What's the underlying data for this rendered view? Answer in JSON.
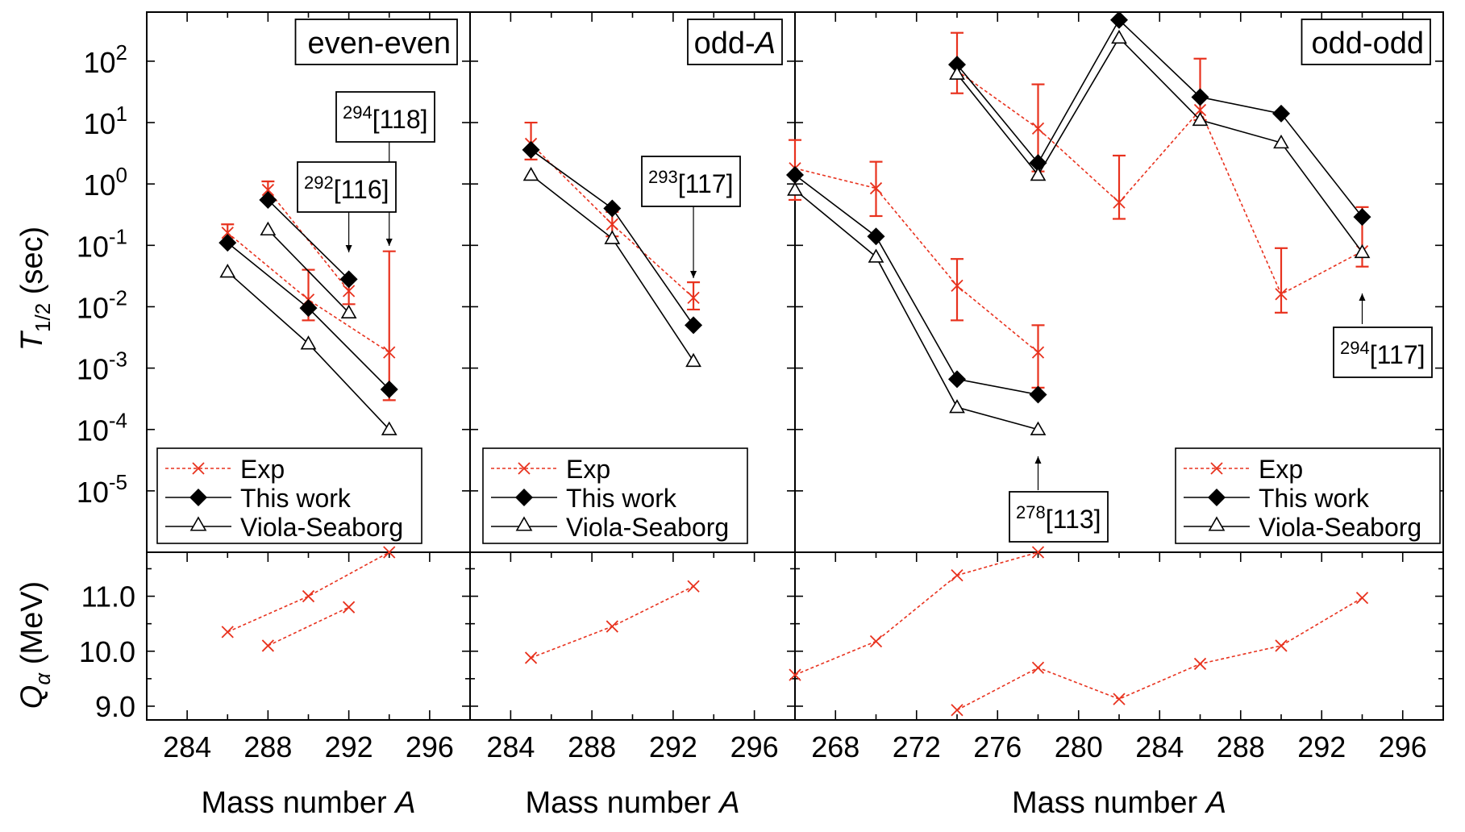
{
  "figure": {
    "y_top_label_main": "T",
    "y_top_label_sub": "1/2",
    "y_top_label_unit": " (sec)",
    "y_bottom_label_main": "Q",
    "y_bottom_label_sub": "α",
    "y_bottom_label_unit": " (MeV)"
  },
  "legend": {
    "entries": [
      "Exp",
      "This work",
      "Viola-Seaborg"
    ]
  },
  "colors": {
    "exp": "#e8321e",
    "model": "#000000"
  },
  "chart_data": [
    {
      "type": "line",
      "title": "even-even",
      "xlabel_main": "Mass number ",
      "xlabel_italic": "A",
      "x_ticks": [
        284,
        288,
        292,
        296
      ],
      "xlim": [
        282,
        298
      ],
      "y_scale": "log",
      "ylim_log10": [
        -6,
        2.8
      ],
      "y_tick_labels": [
        {
          "base": "10",
          "exp": "2",
          "log": 2
        },
        {
          "base": "10",
          "exp": "1",
          "log": 1
        },
        {
          "base": "10",
          "exp": "0",
          "log": 0
        },
        {
          "base": "10",
          "exp": "-1",
          "log": -1
        },
        {
          "base": "10",
          "exp": "-2",
          "log": -2
        },
        {
          "base": "10",
          "exp": "-3",
          "log": -3
        },
        {
          "base": "10",
          "exp": "-4",
          "log": -4
        },
        {
          "base": "10",
          "exp": "-5",
          "log": -5
        }
      ],
      "series": [
        {
          "name": "Exp",
          "segments": [
            [
              {
                "x": 286,
                "y": 0.16,
                "lo": 0.11,
                "hi": 0.22
              },
              {
                "x": 290,
                "y": 0.013,
                "lo": 0.006,
                "hi": 0.04
              },
              {
                "x": 294,
                "y": 0.0018,
                "lo": 0.0003,
                "hi": 0.08
              }
            ],
            [
              {
                "x": 288,
                "y": 0.8,
                "lo": 0.55,
                "hi": 1.1
              },
              {
                "x": 292,
                "y": 0.018,
                "lo": 0.011,
                "hi": 0.028
              }
            ]
          ]
        },
        {
          "name": "This work",
          "segments": [
            [
              {
                "x": 286,
                "y": 0.11
              },
              {
                "x": 290,
                "y": 0.0095
              },
              {
                "x": 294,
                "y": 0.00045
              }
            ],
            [
              {
                "x": 288,
                "y": 0.55
              },
              {
                "x": 292,
                "y": 0.028
              }
            ]
          ]
        },
        {
          "name": "Viola-Seaborg",
          "segments": [
            [
              {
                "x": 286,
                "y": 0.037
              },
              {
                "x": 290,
                "y": 0.0025
              },
              {
                "x": 294,
                "y": 0.0001
              }
            ],
            [
              {
                "x": 288,
                "y": 0.18
              },
              {
                "x": 292,
                "y": 0.008
              }
            ]
          ]
        }
      ],
      "annotations": [
        {
          "sup": "294",
          "label": "[118]"
        },
        {
          "sup": "292",
          "label": "[116]"
        }
      ],
      "q_panel": {
        "ylim": [
          8.75,
          11.8
        ],
        "y_ticks": [
          {
            "v": 9,
            "label": "9.0"
          },
          {
            "v": 10,
            "label": "10.0"
          },
          {
            "v": 11,
            "label": "11.0"
          }
        ],
        "segments": [
          [
            {
              "x": 286,
              "y": 10.35
            },
            {
              "x": 290,
              "y": 11.0
            },
            {
              "x": 294,
              "y": 11.8
            }
          ],
          [
            {
              "x": 288,
              "y": 10.1
            },
            {
              "x": 292,
              "y": 10.8
            }
          ]
        ]
      }
    },
    {
      "type": "line",
      "title_main": "odd-",
      "title_italic": "A",
      "xlabel_main": "Mass number ",
      "xlabel_italic": "A",
      "x_ticks": [
        284,
        288,
        292,
        296
      ],
      "xlim": [
        282,
        298
      ],
      "y_scale": "log",
      "ylim_log10": [
        -6,
        2.8
      ],
      "series": [
        {
          "name": "Exp",
          "segments": [
            [
              {
                "x": 285,
                "y": 4.5,
                "lo": 2.5,
                "hi": 10
              },
              {
                "x": 289,
                "y": 0.22,
                "lo": 0.14,
                "hi": 0.35
              },
              {
                "x": 293,
                "y": 0.014,
                "lo": 0.009,
                "hi": 0.025
              }
            ]
          ]
        },
        {
          "name": "This work",
          "segments": [
            [
              {
                "x": 285,
                "y": 3.6
              },
              {
                "x": 289,
                "y": 0.4
              },
              {
                "x": 293,
                "y": 0.005
              }
            ]
          ]
        },
        {
          "name": "Viola-Seaborg",
          "segments": [
            [
              {
                "x": 285,
                "y": 1.4
              },
              {
                "x": 289,
                "y": 0.13
              },
              {
                "x": 293,
                "y": 0.0013
              }
            ]
          ]
        }
      ],
      "annotations": [
        {
          "sup": "293",
          "label": "[117]"
        }
      ],
      "q_panel": {
        "ylim": [
          8.75,
          11.8
        ],
        "segments": [
          [
            {
              "x": 285,
              "y": 9.88
            },
            {
              "x": 289,
              "y": 10.45
            },
            {
              "x": 293,
              "y": 11.18
            }
          ]
        ]
      }
    },
    {
      "type": "line",
      "title": "odd-odd",
      "xlabel_main": "Mass number ",
      "xlabel_italic": "A",
      "x_ticks": [
        268,
        272,
        276,
        280,
        284,
        288,
        292,
        296
      ],
      "xlim": [
        266,
        298
      ],
      "y_scale": "log",
      "ylim_log10": [
        -6,
        2.8
      ],
      "series": [
        {
          "name": "Exp",
          "segments": [
            [
              {
                "x": 266,
                "y": 1.8,
                "lo": 0.55,
                "hi": 5.2
              },
              {
                "x": 270,
                "y": 0.85,
                "lo": 0.3,
                "hi": 2.3
              },
              {
                "x": 274,
                "y": 0.022,
                "lo": 0.006,
                "hi": 0.06
              },
              {
                "x": 278,
                "y": 0.0018,
                "lo": 0.00048,
                "hi": 0.005
              }
            ],
            [
              {
                "x": 274,
                "y": 70,
                "lo": 30,
                "hi": 290
              },
              {
                "x": 278,
                "y": 8,
                "lo": 1.6,
                "hi": 42
              },
              {
                "x": 282,
                "y": 0.5,
                "lo": 0.27,
                "hi": 2.9
              },
              {
                "x": 286,
                "y": 16,
                "lo": 11,
                "hi": 110
              },
              {
                "x": 290,
                "y": 0.016,
                "lo": 0.008,
                "hi": 0.09
              },
              {
                "x": 294,
                "y": 0.08,
                "lo": 0.045,
                "hi": 0.42
              }
            ]
          ]
        },
        {
          "name": "This work",
          "segments": [
            [
              {
                "x": 266,
                "y": 1.4
              },
              {
                "x": 270,
                "y": 0.14
              },
              {
                "x": 274,
                "y": 0.00066
              },
              {
                "x": 278,
                "y": 0.00037
              }
            ],
            [
              {
                "x": 274,
                "y": 88
              },
              {
                "x": 278,
                "y": 2.2
              },
              {
                "x": 282,
                "y": 470
              },
              {
                "x": 286,
                "y": 26
              },
              {
                "x": 290,
                "y": 14
              },
              {
                "x": 294,
                "y": 0.29
              }
            ]
          ]
        },
        {
          "name": "Viola-Seaborg",
          "segments": [
            [
              {
                "x": 266,
                "y": 0.8
              },
              {
                "x": 270,
                "y": 0.065
              },
              {
                "x": 274,
                "y": 0.00023
              },
              {
                "x": 278,
                "y": 0.0001
              }
            ],
            [
              {
                "x": 274,
                "y": 62
              },
              {
                "x": 278,
                "y": 1.4
              },
              {
                "x": 282,
                "y": 240
              },
              {
                "x": 286,
                "y": 11
              },
              {
                "x": 290,
                "y": 4.7
              },
              {
                "x": 294,
                "y": 0.077
              }
            ]
          ]
        }
      ],
      "annotations": [
        {
          "sup": "278",
          "label": "[113]"
        },
        {
          "sup": "294",
          "label": "[117]"
        }
      ],
      "q_panel": {
        "ylim": [
          8.75,
          11.8
        ],
        "segments": [
          [
            {
              "x": 266,
              "y": 9.57
            },
            {
              "x": 270,
              "y": 10.18
            },
            {
              "x": 274,
              "y": 11.38
            },
            {
              "x": 278,
              "y": 11.8
            }
          ],
          [
            {
              "x": 274,
              "y": 8.93
            },
            {
              "x": 278,
              "y": 9.7
            },
            {
              "x": 282,
              "y": 9.13
            },
            {
              "x": 286,
              "y": 9.77
            },
            {
              "x": 290,
              "y": 10.1
            },
            {
              "x": 294,
              "y": 10.97
            }
          ]
        ]
      }
    }
  ]
}
